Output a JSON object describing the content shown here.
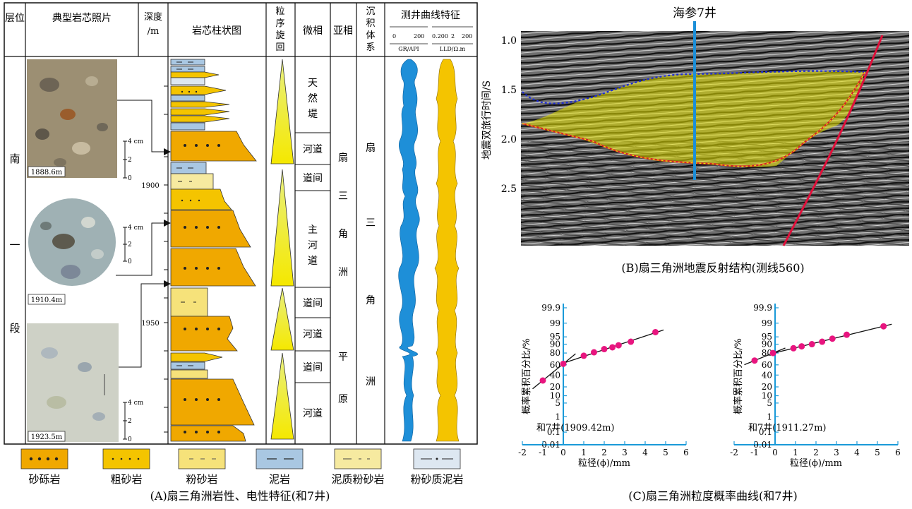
{
  "panelA": {
    "headers": {
      "layer": "层位",
      "core_photo": "典型岩芯照片",
      "depth": "深度",
      "depth_unit": "/m",
      "column": "岩芯柱状图",
      "grain": [
        "粒",
        "序",
        "旋",
        "回"
      ],
      "micro": "微相",
      "sub": "亚相",
      "system": [
        "沉",
        "积",
        "体",
        "系"
      ],
      "log": "测井曲线特征",
      "gr_ticks": [
        "0",
        "200"
      ],
      "gr_unit": "GR/API",
      "lld_ticks": [
        "0.200",
        "2",
        "200"
      ],
      "lld_unit": "LLD/Ω.m"
    },
    "layer_chars": [
      "南",
      "一",
      "段"
    ],
    "photos": [
      {
        "label": "1888.6m"
      },
      {
        "label": "1910.4m"
      },
      {
        "label": "1923.5m"
      }
    ],
    "scale_labels": [
      "4 cm",
      "2",
      "0"
    ],
    "depths": [
      "1900",
      "1950"
    ],
    "micro_facies": [
      "天然堤",
      "河道",
      "道间",
      "主河道",
      "道间",
      "河道",
      "道间",
      "河道"
    ],
    "sub_facies": [
      "扇",
      "三",
      "角",
      "洲",
      "平",
      "原"
    ],
    "system_chars": [
      "扇",
      "三",
      "角",
      "洲"
    ],
    "legend": [
      {
        "label": "砂砾岩",
        "color": "#f0a800"
      },
      {
        "label": "粗砂岩",
        "color": "#f4c400"
      },
      {
        "label": "粉砂岩",
        "color": "#f6e27a"
      },
      {
        "label": "泥岩",
        "color": "#a9c7e2"
      },
      {
        "label": "泥质粉砂岩",
        "color": "#f6eaa0"
      },
      {
        "label": "粉砂质泥岩",
        "color": "#dde7f1"
      }
    ],
    "caption": "(A)扇三角洲岩性、电性特征(和7井)"
  },
  "panelB": {
    "well": "海参7井",
    "ylabel": "地震双旅行时间/S",
    "yticks": [
      "1.0",
      "1.5",
      "2.0",
      "2.5"
    ],
    "caption": "(B)扇三角洲地震反射结构(测线560)"
  },
  "panelC": {
    "caption": "(C)扇三角洲粒度概率曲线(和7井)",
    "ylabel": "概率累积百分比/%",
    "xlabel": "粒径(ϕ)/mm",
    "yticks": [
      "99.9",
      "99",
      "95",
      "90",
      "80",
      "60",
      "40",
      "20",
      "10",
      "5",
      "1",
      "0.1",
      "0.01"
    ],
    "xticks": [
      "-2",
      "-1",
      "0",
      "1",
      "2",
      "3",
      "4",
      "5",
      "6"
    ]
  },
  "chart_data": [
    {
      "type": "scatter",
      "title": "和7井(1909.42m)",
      "xlabel": "粒径(ϕ)/mm",
      "ylabel": "概率累积百分比/%",
      "x": [
        -1.0,
        0.0,
        1.0,
        1.5,
        2.0,
        2.4,
        2.7,
        3.3,
        4.5
      ],
      "y": [
        30,
        62,
        76,
        81,
        85,
        87,
        89,
        92,
        97
      ],
      "xlim": [
        -2,
        6
      ],
      "y_scale": "probability"
    },
    {
      "type": "scatter",
      "title": "和7井(1911.27m)",
      "xlabel": "粒径(ϕ)/mm",
      "ylabel": "概率累积百分比/%",
      "x": [
        -1.0,
        -0.1,
        0.9,
        1.3,
        1.8,
        2.3,
        2.8,
        3.5,
        5.3
      ],
      "y": [
        68,
        80,
        86,
        88,
        90,
        92,
        94,
        96,
        98.5
      ],
      "xlim": [
        -2,
        6
      ],
      "y_scale": "probability"
    }
  ]
}
